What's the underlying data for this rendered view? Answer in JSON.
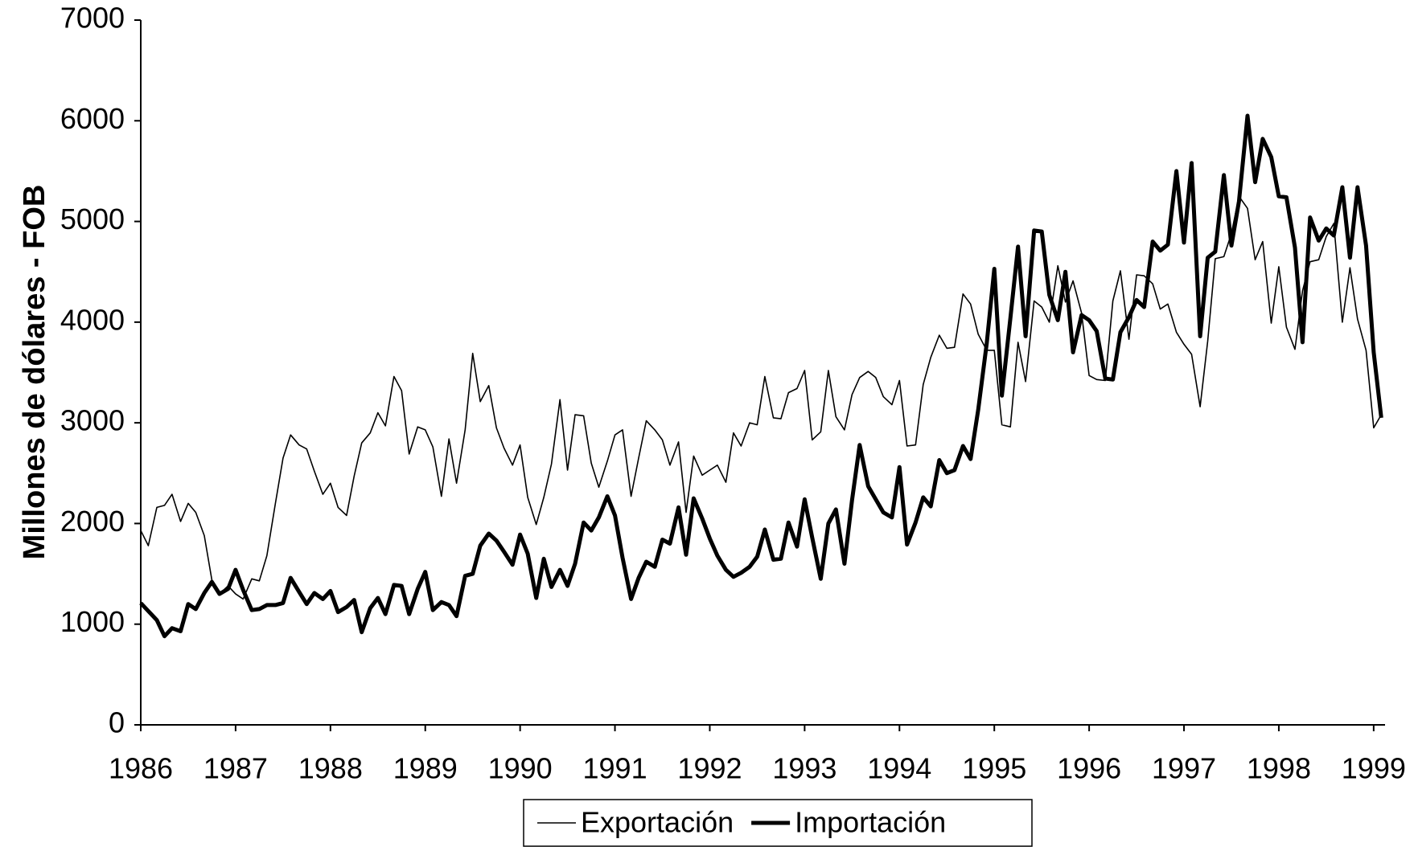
{
  "chart_data": {
    "type": "line",
    "ylabel": "Millones de dólares - FOB",
    "x": [
      1986,
      1986.08,
      1986.17,
      1986.25,
      1986.33,
      1986.42,
      1986.5,
      1986.58,
      1986.67,
      1986.75,
      1986.83,
      1986.92,
      1987,
      1987.08,
      1987.17,
      1987.25,
      1987.33,
      1987.42,
      1987.5,
      1987.58,
      1987.67,
      1987.75,
      1987.83,
      1987.92,
      1988,
      1988.08,
      1988.17,
      1988.25,
      1988.33,
      1988.42,
      1988.5,
      1988.58,
      1988.67,
      1988.75,
      1988.83,
      1988.92,
      1989,
      1989.08,
      1989.17,
      1989.25,
      1989.33,
      1989.42,
      1989.5,
      1989.58,
      1989.67,
      1989.75,
      1989.83,
      1989.92,
      1990,
      1990.08,
      1990.17,
      1990.25,
      1990.33,
      1990.42,
      1990.5,
      1990.58,
      1990.67,
      1990.75,
      1990.83,
      1990.92,
      1991,
      1991.08,
      1991.17,
      1991.25,
      1991.33,
      1991.42,
      1991.5,
      1991.58,
      1991.67,
      1991.75,
      1991.83,
      1991.92,
      1992,
      1992.08,
      1992.17,
      1992.25,
      1992.33,
      1992.42,
      1992.5,
      1992.58,
      1992.67,
      1992.75,
      1992.83,
      1992.92,
      1993,
      1993.08,
      1993.17,
      1993.25,
      1993.33,
      1993.42,
      1993.5,
      1993.58,
      1993.67,
      1993.75,
      1993.83,
      1993.92,
      1994,
      1994.08,
      1994.17,
      1994.25,
      1994.33,
      1994.42,
      1994.5,
      1994.58,
      1994.67,
      1994.75,
      1994.83,
      1994.92,
      1995,
      1995.08,
      1995.17,
      1995.25,
      1995.33,
      1995.42,
      1995.5,
      1995.58,
      1995.67,
      1995.75,
      1995.83,
      1995.92,
      1996,
      1996.08,
      1996.17,
      1996.25,
      1996.33,
      1996.42,
      1996.5,
      1996.58,
      1996.67,
      1996.75,
      1996.83,
      1996.92,
      1997,
      1997.08,
      1997.17,
      1997.25,
      1997.33,
      1997.42,
      1997.5,
      1997.58,
      1997.67,
      1997.75,
      1997.83,
      1997.92,
      1998,
      1998.08,
      1998.17,
      1998.25,
      1998.33,
      1998.42,
      1998.5,
      1998.58,
      1998.67,
      1998.75,
      1998.83,
      1998.92,
      1999,
      1999.08
    ],
    "series": [
      {
        "name": "Exportación",
        "color": "#000000",
        "width": 1.6,
        "values": [
          1930,
          1780,
          2160,
          2180,
          2290,
          2020,
          2200,
          2110,
          1880,
          1440,
          1300,
          1380,
          1300,
          1250,
          1450,
          1430,
          1680,
          2200,
          2650,
          2880,
          2780,
          2740,
          2520,
          2290,
          2400,
          2160,
          2080,
          2470,
          2800,
          2900,
          3100,
          2970,
          3460,
          3320,
          2690,
          2960,
          2930,
          2760,
          2270,
          2840,
          2400,
          2930,
          3690,
          3210,
          3370,
          2950,
          2750,
          2580,
          2780,
          2260,
          1990,
          2260,
          2590,
          3230,
          2530,
          3080,
          3070,
          2600,
          2360,
          2620,
          2880,
          2930,
          2270,
          2650,
          3020,
          2930,
          2830,
          2580,
          2810,
          2110,
          2670,
          2480,
          2530,
          2580,
          2410,
          2900,
          2770,
          3000,
          2980,
          3460,
          3050,
          3040,
          3300,
          3340,
          3520,
          2830,
          2910,
          3520,
          3060,
          2930,
          3280,
          3450,
          3510,
          3450,
          3260,
          3180,
          3420,
          2770,
          2780,
          3380,
          3650,
          3870,
          3740,
          3750,
          4280,
          4180,
          3880,
          3720,
          3720,
          2980,
          2960,
          3800,
          3410,
          4210,
          4150,
          4000,
          4560,
          4200,
          4410,
          4090,
          3470,
          3430,
          3420,
          4210,
          4510,
          3830,
          4470,
          4460,
          4380,
          4130,
          4180,
          3900,
          3780,
          3680,
          3160,
          3810,
          4630,
          4650,
          4880,
          5250,
          5130,
          4620,
          4800,
          3990,
          4550,
          3950,
          3730,
          4310,
          4600,
          4620,
          4850,
          4980,
          4000,
          4540,
          4030,
          3720,
          2950,
          3080
        ]
      },
      {
        "name": "Importación",
        "color": "#000000",
        "width": 5,
        "values": [
          1210,
          1130,
          1040,
          880,
          960,
          930,
          1200,
          1150,
          1310,
          1420,
          1300,
          1350,
          1540,
          1340,
          1140,
          1150,
          1190,
          1190,
          1210,
          1460,
          1320,
          1200,
          1310,
          1250,
          1330,
          1120,
          1170,
          1240,
          920,
          1160,
          1260,
          1100,
          1390,
          1380,
          1100,
          1350,
          1520,
          1140,
          1220,
          1190,
          1080,
          1480,
          1500,
          1780,
          1900,
          1830,
          1720,
          1590,
          1890,
          1700,
          1260,
          1650,
          1370,
          1540,
          1380,
          1600,
          2010,
          1930,
          2060,
          2270,
          2080,
          1660,
          1250,
          1460,
          1620,
          1570,
          1840,
          1800,
          2160,
          1690,
          2250,
          2050,
          1850,
          1680,
          1540,
          1470,
          1510,
          1570,
          1670,
          1940,
          1640,
          1650,
          2010,
          1770,
          2240,
          1860,
          1450,
          2000,
          2140,
          1600,
          2230,
          2780,
          2370,
          2240,
          2110,
          2060,
          2560,
          1790,
          2010,
          2260,
          2170,
          2630,
          2500,
          2530,
          2770,
          2640,
          3130,
          3790,
          4530,
          3270,
          4040,
          4750,
          3860,
          4910,
          4900,
          4270,
          4020,
          4500,
          3700,
          4070,
          4020,
          3910,
          3440,
          3430,
          3900,
          4050,
          4220,
          4150,
          4800,
          4710,
          4770,
          5500,
          4790,
          5580,
          3860,
          4640,
          4700,
          5460,
          4760,
          5200,
          6050,
          5390,
          5820,
          5640,
          5250,
          5240,
          4740,
          3800,
          5040,
          4810,
          4930,
          4860,
          5340,
          4640,
          5340,
          4760,
          3700,
          3050
        ]
      }
    ],
    "xlim": [
      1986,
      1999.12
    ],
    "xticks": [
      1986,
      1987,
      1988,
      1989,
      1990,
      1991,
      1992,
      1993,
      1994,
      1995,
      1996,
      1997,
      1998,
      1999
    ],
    "ylim": [
      0,
      7000
    ],
    "yticks": [
      0,
      1000,
      2000,
      3000,
      4000,
      5000,
      6000,
      7000
    ],
    "grid": false,
    "legend": "bottom"
  }
}
